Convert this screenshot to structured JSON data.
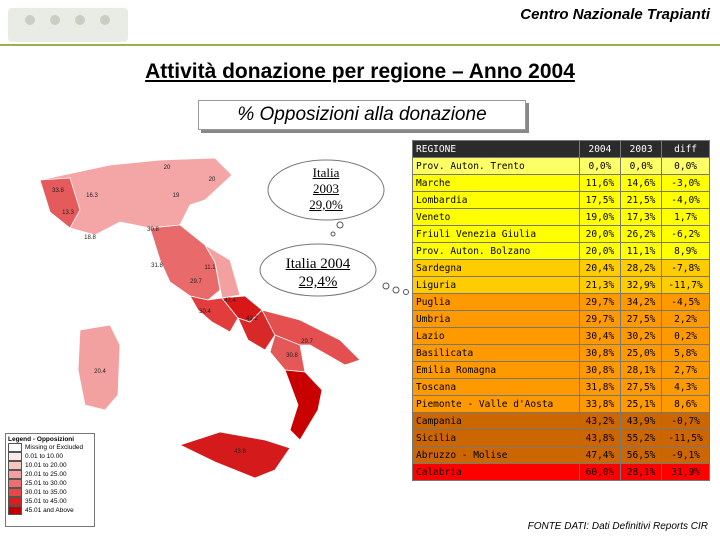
{
  "header": {
    "title": "Centro Nazionale Trapianti"
  },
  "slide": {
    "title": "Attività donazione per regione – Anno 2004",
    "subtitle": "% Opposizioni alla donazione",
    "footer": "FONTE DATI: Dati Definitivi Reports CIR"
  },
  "callouts": [
    {
      "lines": [
        "Italia",
        "2003",
        "29,0%"
      ]
    },
    {
      "lines": [
        "Italia 2004",
        "29,4%"
      ]
    }
  ],
  "map_labels": [
    "33.8",
    "13.3",
    "16.3",
    "19",
    "20",
    "20",
    "30.8",
    "18.8",
    "31.8",
    "11.1",
    "29.7",
    "30.4",
    "20.4",
    "47.4",
    "43.2",
    "29.7",
    "30.8",
    "43.8"
  ],
  "legend": {
    "title": "Legend - Opposizioni",
    "items": [
      "Missing or Excluded",
      "0.01 to 10.00",
      "10.01 to 20.00",
      "20.01 to 25.00",
      "25.01 to 30.00",
      "30.01 to 35.00",
      "35.01 to 45.00",
      "45.01 and Above"
    ]
  },
  "table": {
    "columns": [
      "REGIONE",
      "2004",
      "2003",
      "diff"
    ],
    "rows": [
      [
        "Prov. Auton. Trento",
        "0,0%",
        "0,0%",
        "0,0%"
      ],
      [
        "Marche",
        "11,6%",
        "14,6%",
        "-3,0%"
      ],
      [
        "Lombardia",
        "17,5%",
        "21,5%",
        "-4,0%"
      ],
      [
        "Veneto",
        "19,0%",
        "17,3%",
        "1,7%"
      ],
      [
        "Friuli Venezia Giulia",
        "20,0%",
        "26,2%",
        "-6,2%"
      ],
      [
        "Prov. Auton. Bolzano",
        "20,0%",
        "11,1%",
        "8,9%"
      ],
      [
        "Sardegna",
        "20,4%",
        "28,2%",
        "-7,8%"
      ],
      [
        "Liguria",
        "21,3%",
        "32,9%",
        "-11,7%"
      ],
      [
        "Puglia",
        "29,7%",
        "34,2%",
        "-4,5%"
      ],
      [
        "Umbria",
        "29,7%",
        "27,5%",
        "2,2%"
      ],
      [
        "Lazio",
        "30,4%",
        "30,2%",
        "0,2%"
      ],
      [
        "Basilicata",
        "30,8%",
        "25,0%",
        "5,8%"
      ],
      [
        "Emilia Romagna",
        "30,8%",
        "28,1%",
        "2,7%"
      ],
      [
        "Toscana",
        "31,8%",
        "27,5%",
        "4,3%"
      ],
      [
        "Piemonte - Valle d'Aosta",
        "33,8%",
        "25,1%",
        "8,6%"
      ],
      [
        "Campania",
        "43,2%",
        "43,9%",
        "-0,7%"
      ],
      [
        "Sicilia",
        "43,8%",
        "55,2%",
        "-11,5%"
      ],
      [
        "Abruzzo - Molise",
        "47,4%",
        "56,5%",
        "-9,1%"
      ],
      [
        "Calabria",
        "60,0%",
        "28,1%",
        "31,9%"
      ]
    ]
  }
}
